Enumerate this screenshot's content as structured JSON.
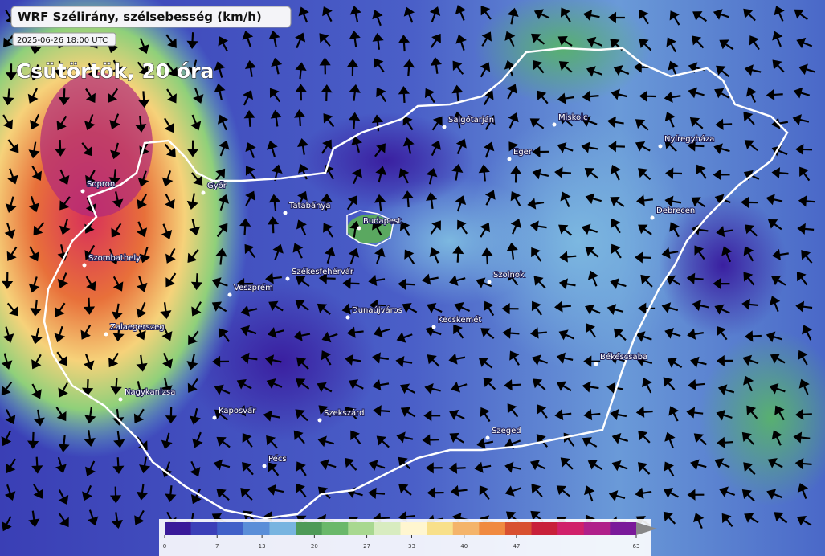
{
  "header": {
    "title": "WRF Szélirány, szélsebesség (km/h)",
    "timestamp": "2025-06-26 18:00 UTC",
    "day": "Csütörtök, 20 óra"
  },
  "cities": [
    "Salgótarján",
    "Miskolc",
    "Eger",
    "Nyíregyháza",
    "Debrecen",
    "Budapest",
    "Tatabánya",
    "Győr",
    "Sopron",
    "Szombathely",
    "Székesfehérvár",
    "Veszprém",
    "Szolnok",
    "Dunaújváros",
    "Kecskemét",
    "Zalaegerszeg",
    "Békéscsaba",
    "Nagykanizsa",
    "Kaposvár",
    "Szekszárd",
    "Szeged",
    "Pécs"
  ],
  "colorbar": {
    "lim": [
      0,
      63
    ],
    "ticks": [
      0,
      7,
      13,
      20,
      27,
      33,
      40,
      47,
      63
    ]
  }
}
